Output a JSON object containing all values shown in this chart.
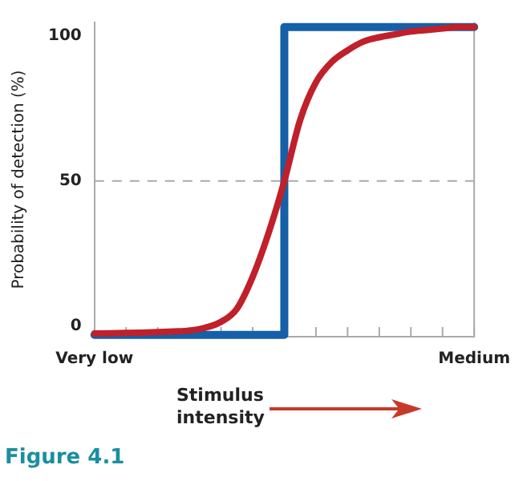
{
  "chart_data": {
    "type": "line",
    "xlabel": "Stimulus intensity",
    "ylabel": "Probability of detection (%)",
    "annotations": [
      "Figure 4.1"
    ],
    "categories": [
      "Very low",
      null,
      null,
      null,
      null,
      null,
      null,
      null,
      null,
      null,
      null,
      null,
      null,
      null,
      null,
      null,
      null,
      null,
      null,
      null,
      null,
      null,
      null,
      null,
      "Medium"
    ],
    "ylim": [
      -3.6,
      104.6
    ],
    "yticks": [
      0,
      50,
      100
    ],
    "grid": false,
    "legend": false,
    "marker": "none",
    "line_style": "solid",
    "ref_lines": [
      {
        "axis": "y",
        "value": 50,
        "color": "#aaaaaa",
        "line_style": "dashed"
      }
    ],
    "series": [
      {
        "color": "#c0202a",
        "values": [
          -2.5,
          -2.4,
          -2.3,
          -2.2,
          -2,
          -1.8,
          -1.5,
          -0.5,
          1.5,
          6,
          17,
          32,
          50,
          71,
          84,
          91,
          95,
          98,
          99.5,
          100.5,
          101.5,
          102,
          102.5,
          103,
          103
        ]
      },
      {
        "type": "step",
        "color": "#1560a8",
        "values": [
          -3,
          -3,
          -3,
          -3,
          -3,
          -3,
          -3,
          -3,
          -3,
          -3,
          -3,
          -3,
          103,
          103,
          103,
          103,
          103,
          103,
          103,
          103,
          103,
          103,
          103,
          103,
          103
        ]
      }
    ]
  }
}
